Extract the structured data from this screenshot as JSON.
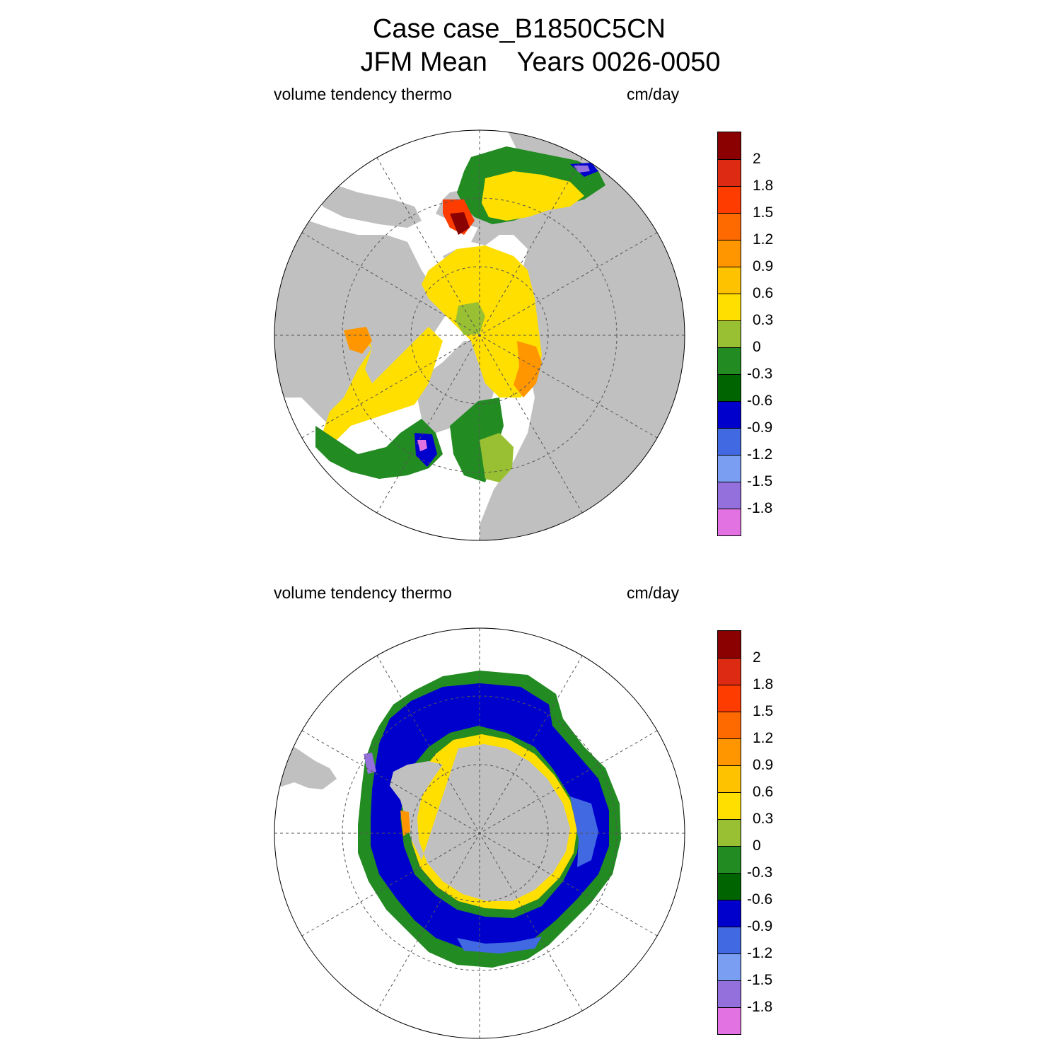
{
  "title": {
    "line1": "Case case_B1850C5CN",
    "line2": "JFM Mean    Years 0026-0050"
  },
  "panels": [
    {
      "left_label": "volume tendency thermo",
      "right_label": "cm/day",
      "hemisphere": "north"
    },
    {
      "left_label": "volume tendency thermo",
      "right_label": "cm/day",
      "hemisphere": "south"
    }
  ],
  "colorbar": {
    "colors": [
      "#8b0000",
      "#dd2a12",
      "#ff3c00",
      "#ff6a00",
      "#ff9600",
      "#ffc200",
      "#ffdf00",
      "#99c032",
      "#228b22",
      "#006400",
      "#0000cd",
      "#4169e1",
      "#7a9ef2",
      "#9370db",
      "#e272e2"
    ],
    "labels": [
      "2",
      "1.8",
      "1.5",
      "1.2",
      "0.9",
      "0.6",
      "0.3",
      "0",
      "-0.3",
      "-0.6",
      "-0.9",
      "-1.2",
      "-1.5",
      "-1.8"
    ]
  },
  "map_colors": {
    "land": "#c0c0c0",
    "ocean": "#ffffff",
    "grid": "#555555"
  }
}
